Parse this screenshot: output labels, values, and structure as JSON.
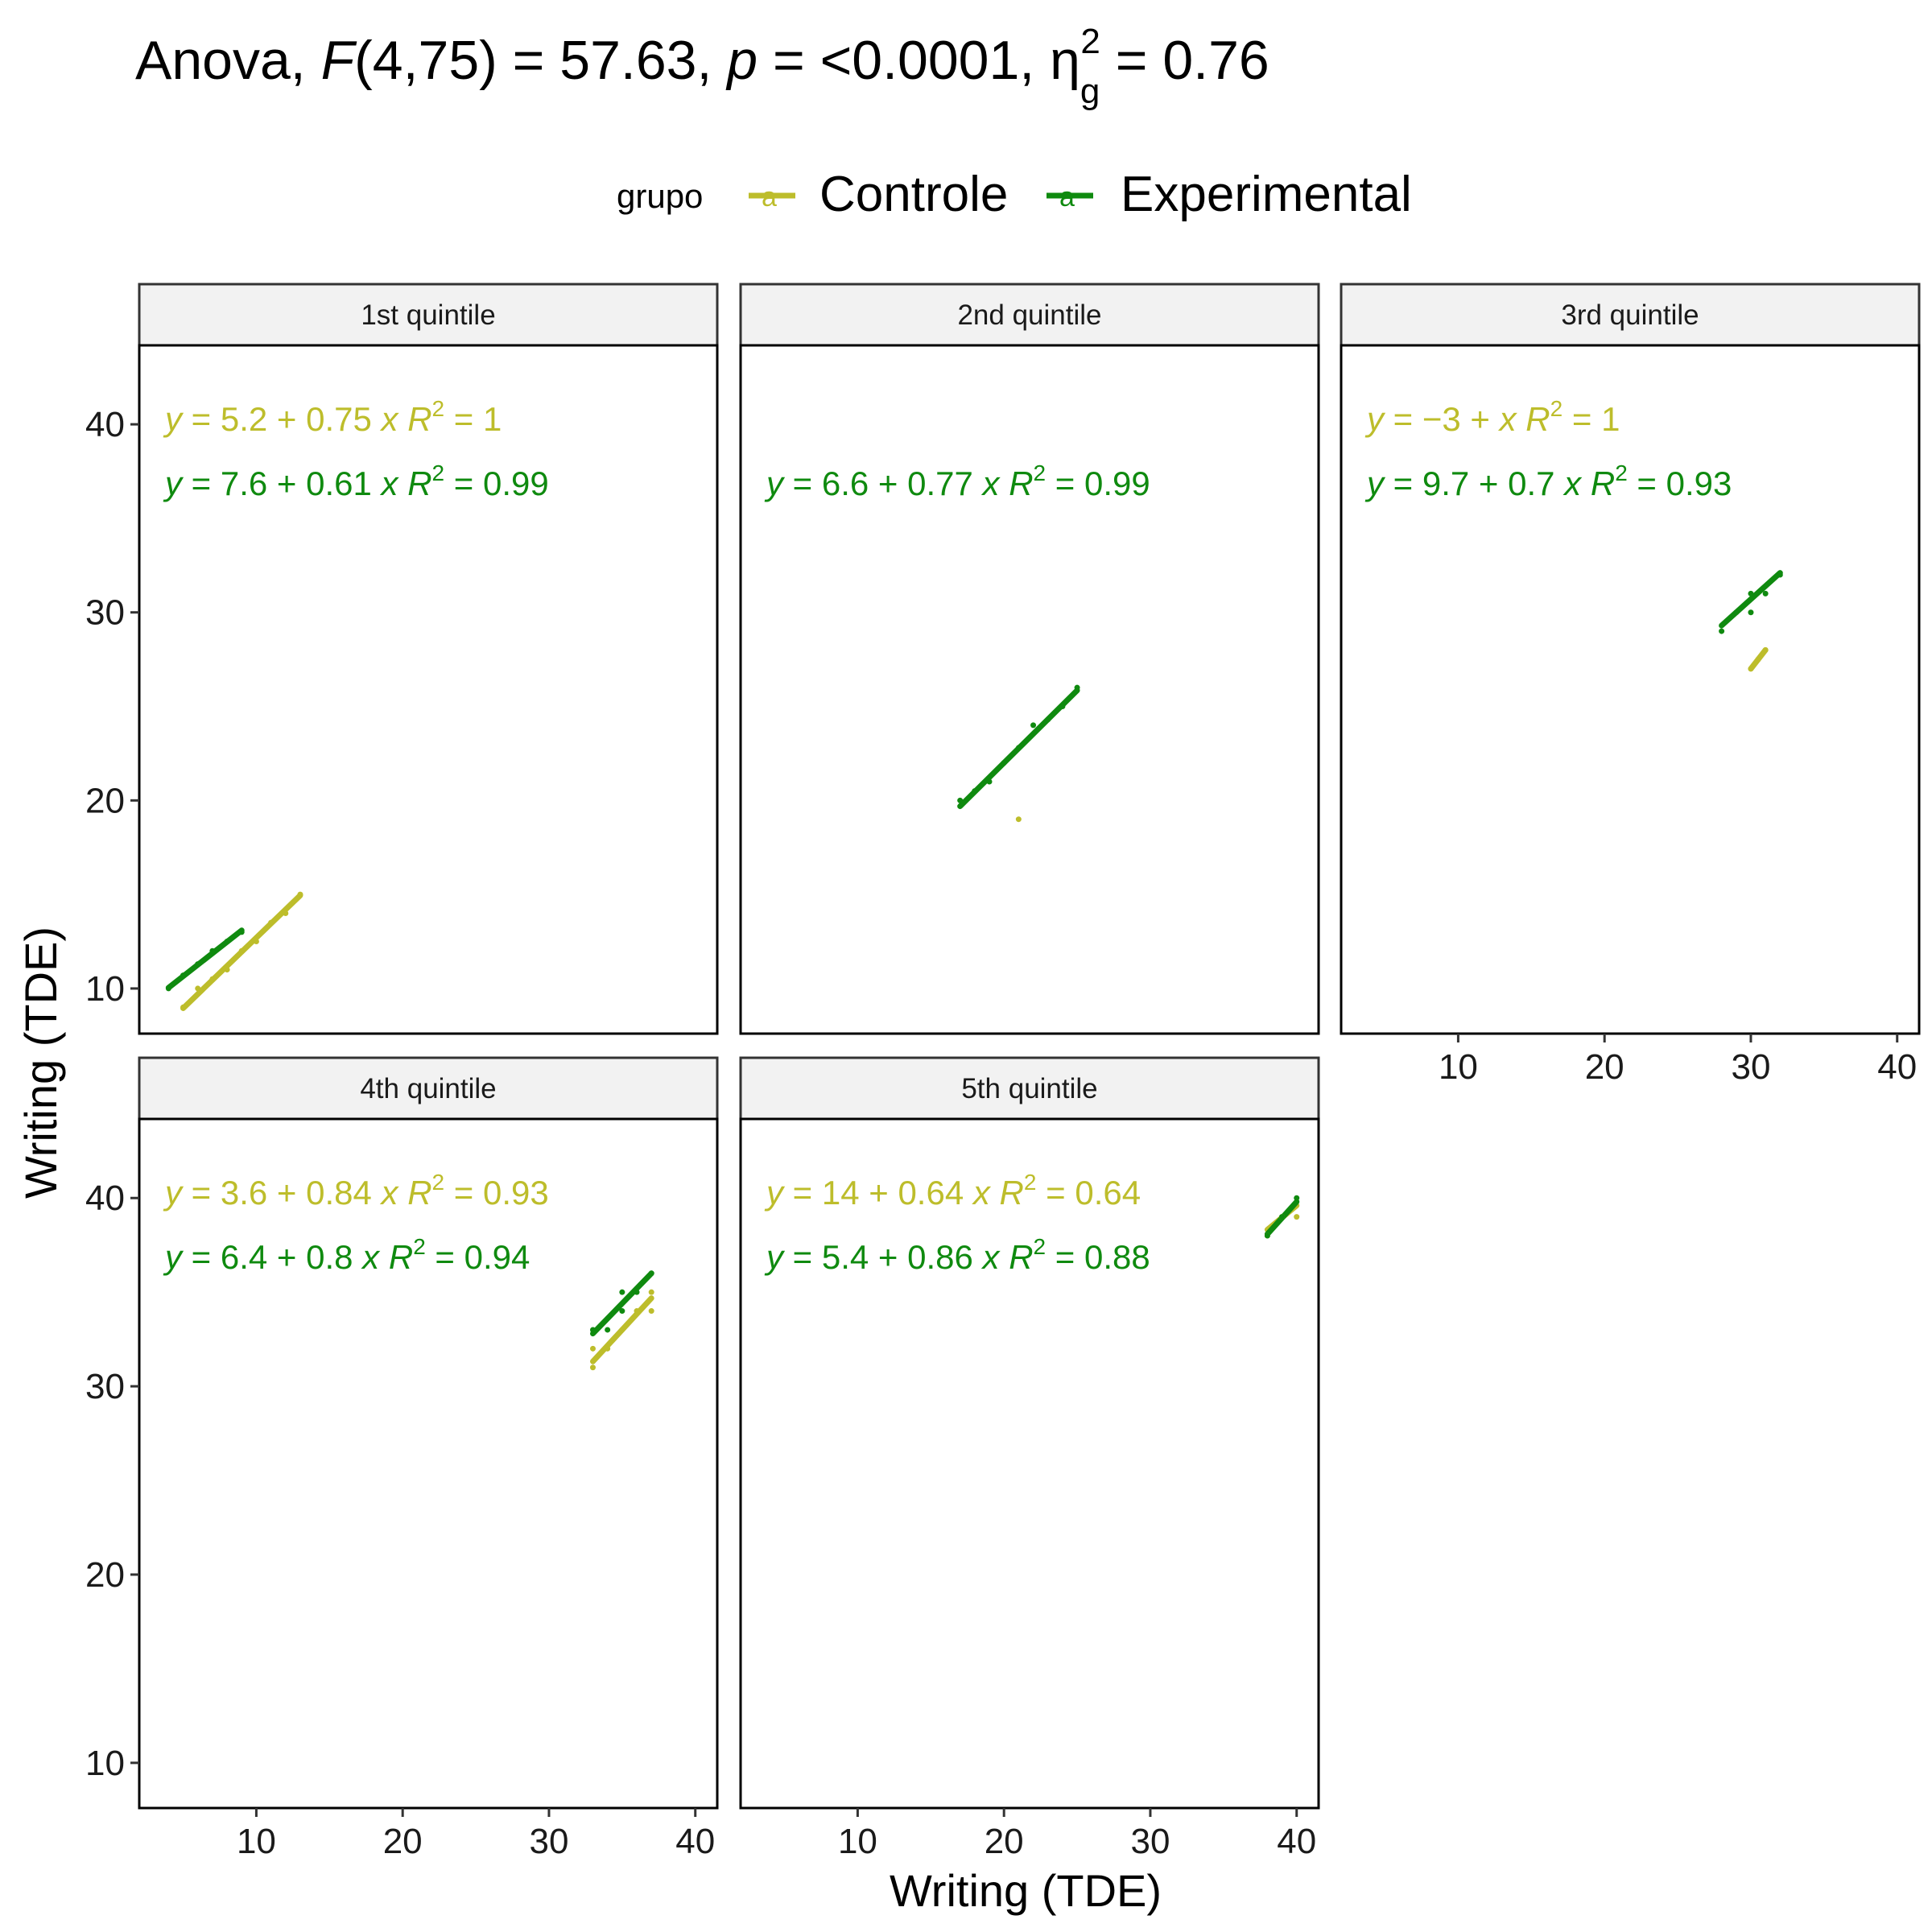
{
  "title": {
    "prefix": "Anova, ",
    "f_symbol": "F",
    "f_args": "(4,75) = 57.63, ",
    "p_symbol": "p",
    "p_value": " = <0.0001, ",
    "eta_symbol": "η",
    "eta_sub": "g",
    "eta_sup": "2",
    "eta_value": " = 0.76"
  },
  "legend": {
    "title": "grupo",
    "glyph": "a",
    "position": "top",
    "items": [
      {
        "label": "Controle",
        "color": "#bdbd2b"
      },
      {
        "label": "Experimental",
        "color": "#0f8a0f"
      }
    ]
  },
  "axes": {
    "xlabel": "Writing (TDE)",
    "ylabel": "Writing (TDE)",
    "xlim": [
      2,
      41.5
    ],
    "ylim": [
      7.6,
      44.2
    ],
    "xticks": [
      "10",
      "20",
      "30",
      "40"
    ],
    "yticks": [
      "10",
      "20",
      "30",
      "40"
    ],
    "grid": false
  },
  "chart_data": {
    "type": "scatter",
    "facet_by": "quintile",
    "series_names": [
      "Controle",
      "Experimental"
    ],
    "panels": [
      {
        "strip": "1st quintile",
        "fits": [
          {
            "group": "Controle",
            "intercept": 5.2,
            "slope": 0.75,
            "r2": "1",
            "eq_a": "5.2",
            "eq_b": "0.75",
            "r2_text": "1",
            "x_range": [
              5,
              13
            ]
          },
          {
            "group": "Experimental",
            "intercept": 7.6,
            "slope": 0.61,
            "r2": "0.99",
            "eq_a": "7.6",
            "eq_b": "0.61",
            "r2_text": "0.99",
            "x_range": [
              4,
              9
            ]
          }
        ],
        "points": [
          {
            "group": "Controle",
            "x": 5,
            "y": 9
          },
          {
            "group": "Controle",
            "x": 6,
            "y": 10
          },
          {
            "group": "Controle",
            "x": 7,
            "y": 10.5
          },
          {
            "group": "Controle",
            "x": 8,
            "y": 11
          },
          {
            "group": "Controle",
            "x": 9,
            "y": 12
          },
          {
            "group": "Controle",
            "x": 10,
            "y": 12.5
          },
          {
            "group": "Controle",
            "x": 11,
            "y": 13.5
          },
          {
            "group": "Controle",
            "x": 12,
            "y": 14
          },
          {
            "group": "Controle",
            "x": 13,
            "y": 15
          },
          {
            "group": "Experimental",
            "x": 4,
            "y": 10
          },
          {
            "group": "Experimental",
            "x": 5,
            "y": 10.7
          },
          {
            "group": "Experimental",
            "x": 6,
            "y": 11.3
          },
          {
            "group": "Experimental",
            "x": 7,
            "y": 12
          },
          {
            "group": "Experimental",
            "x": 8,
            "y": 12.5
          },
          {
            "group": "Experimental",
            "x": 9,
            "y": 13
          }
        ]
      },
      {
        "strip": "2nd quintile",
        "fits": [
          {
            "group": "Experimental",
            "intercept": 6.6,
            "slope": 0.77,
            "r2": "0.99",
            "eq_a": "6.6",
            "eq_b": "0.77",
            "r2_text": "0.99",
            "x_range": [
              17,
              25
            ]
          }
        ],
        "points": [
          {
            "group": "Controle",
            "x": 21,
            "y": 19
          },
          {
            "group": "Experimental",
            "x": 17,
            "y": 20
          },
          {
            "group": "Experimental",
            "x": 18,
            "y": 20.5
          },
          {
            "group": "Experimental",
            "x": 19,
            "y": 21
          },
          {
            "group": "Experimental",
            "x": 20,
            "y": 22
          },
          {
            "group": "Experimental",
            "x": 21,
            "y": 22.8
          },
          {
            "group": "Experimental",
            "x": 22,
            "y": 24
          },
          {
            "group": "Experimental",
            "x": 23,
            "y": 24.3
          },
          {
            "group": "Experimental",
            "x": 24,
            "y": 25
          },
          {
            "group": "Experimental",
            "x": 25,
            "y": 26
          }
        ]
      },
      {
        "strip": "3rd quintile",
        "fits": [
          {
            "group": "Controle",
            "intercept": -3,
            "slope": 1,
            "r2": "1",
            "eq_a": "−3",
            "eq_b": "",
            "r2_text": "1",
            "x_range": [
              30,
              31
            ]
          },
          {
            "group": "Experimental",
            "intercept": 9.7,
            "slope": 0.7,
            "r2": "0.93",
            "eq_a": "9.7",
            "eq_b": "0.7",
            "r2_text": "0.93",
            "x_range": [
              28,
              32
            ]
          }
        ],
        "points": [
          {
            "group": "Controle",
            "x": 30,
            "y": 27
          },
          {
            "group": "Controle",
            "x": 30.5,
            "y": 27.5
          },
          {
            "group": "Controle",
            "x": 31,
            "y": 28
          },
          {
            "group": "Experimental",
            "x": 28,
            "y": 29
          },
          {
            "group": "Experimental",
            "x": 29,
            "y": 30
          },
          {
            "group": "Experimental",
            "x": 30,
            "y": 30
          },
          {
            "group": "Experimental",
            "x": 30,
            "y": 31
          },
          {
            "group": "Experimental",
            "x": 31,
            "y": 31
          },
          {
            "group": "Experimental",
            "x": 32,
            "y": 32
          }
        ]
      },
      {
        "strip": "4th quintile",
        "fits": [
          {
            "group": "Controle",
            "intercept": 3.6,
            "slope": 0.84,
            "r2": "0.93",
            "eq_a": "3.6",
            "eq_b": "0.84",
            "r2_text": "0.93",
            "x_range": [
              33,
              37
            ]
          },
          {
            "group": "Experimental",
            "intercept": 6.4,
            "slope": 0.8,
            "r2": "0.94",
            "eq_a": "6.4",
            "eq_b": "0.8",
            "r2_text": "0.94",
            "x_range": [
              33,
              37
            ]
          }
        ],
        "points": [
          {
            "group": "Controle",
            "x": 33,
            "y": 31
          },
          {
            "group": "Controle",
            "x": 33,
            "y": 32
          },
          {
            "group": "Controle",
            "x": 34,
            "y": 32
          },
          {
            "group": "Controle",
            "x": 35,
            "y": 33
          },
          {
            "group": "Controle",
            "x": 36,
            "y": 34
          },
          {
            "group": "Controle",
            "x": 37,
            "y": 34
          },
          {
            "group": "Controle",
            "x": 37,
            "y": 35
          },
          {
            "group": "Experimental",
            "x": 33,
            "y": 33
          },
          {
            "group": "Experimental",
            "x": 34,
            "y": 33
          },
          {
            "group": "Experimental",
            "x": 35,
            "y": 34
          },
          {
            "group": "Experimental",
            "x": 35,
            "y": 35
          },
          {
            "group": "Experimental",
            "x": 36,
            "y": 35
          },
          {
            "group": "Experimental",
            "x": 37,
            "y": 36
          }
        ]
      },
      {
        "strip": "5th quintile",
        "fits": [
          {
            "group": "Controle",
            "intercept": 14,
            "slope": 0.64,
            "r2": "0.64",
            "eq_a": "14",
            "eq_b": "0.64",
            "r2_text": "0.64",
            "x_range": [
              38,
              40
            ]
          },
          {
            "group": "Experimental",
            "intercept": 5.4,
            "slope": 0.86,
            "r2": "0.88",
            "eq_a": "5.4",
            "eq_b": "0.86",
            "r2_text": "0.88",
            "x_range": [
              38,
              40
            ]
          }
        ],
        "points": [
          {
            "group": "Controle",
            "x": 38,
            "y": 38
          },
          {
            "group": "Controle",
            "x": 39,
            "y": 39
          },
          {
            "group": "Controle",
            "x": 40,
            "y": 39
          },
          {
            "group": "Experimental",
            "x": 38,
            "y": 38
          },
          {
            "group": "Experimental",
            "x": 39,
            "y": 39
          },
          {
            "group": "Experimental",
            "x": 40,
            "y": 40
          }
        ]
      }
    ]
  }
}
